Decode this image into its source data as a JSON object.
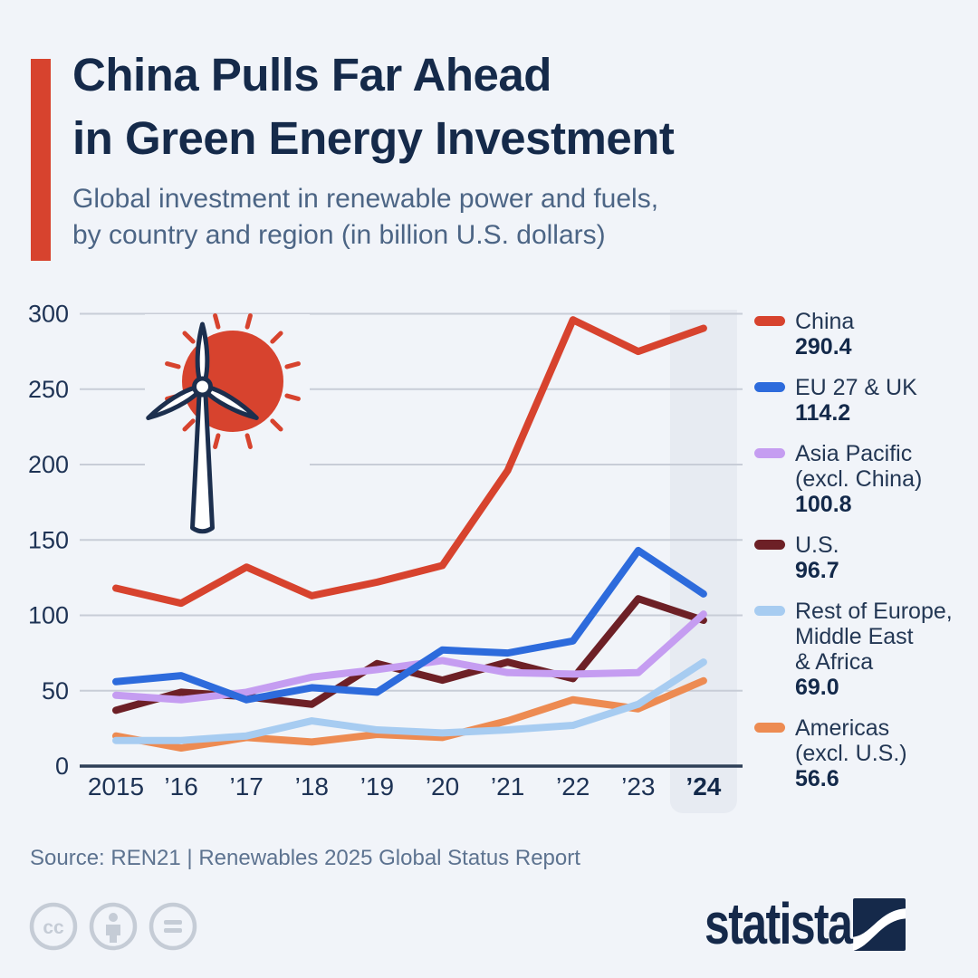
{
  "header": {
    "title_lines": [
      "China Pulls Far Ahead",
      "in Green Energy Investment"
    ],
    "subtitle_lines": [
      "Global investment in renewable power and fuels,",
      "by country and region (in billion U.S. dollars)"
    ],
    "accent_color": "#d7432e"
  },
  "chart_data": {
    "type": "line",
    "title": "Global investment in renewable power and fuels, by country and region (in billion U.S. dollars)",
    "x_labels": [
      "2015",
      "’16",
      "’17",
      "’18",
      "’19",
      "’20",
      "’21",
      "’22",
      "’23",
      "’24"
    ],
    "y_ticks": [
      0,
      50,
      100,
      150,
      200,
      250,
      300
    ],
    "ylim": [
      0,
      300
    ],
    "grid": "horizontal",
    "legend_position": "right",
    "highlighted_x": "’24",
    "unit": "billion U.S. dollars",
    "series": [
      {
        "name": "China",
        "color": "#d7432e",
        "values": [
          118,
          108,
          132,
          113,
          122,
          133,
          196,
          296,
          275,
          290.4
        ],
        "final_label": "290.4"
      },
      {
        "name": "EU 27 & UK",
        "color": "#2d6bdc",
        "values": [
          56,
          60,
          44,
          52,
          49,
          77,
          75,
          83,
          143,
          114.2
        ],
        "final_label": "114.2"
      },
      {
        "name": "Asia Pacific (excl. China)",
        "color": "#c59df1",
        "values": [
          47,
          44,
          49,
          59,
          64,
          70,
          62,
          61,
          62,
          100.8
        ],
        "final_label": "100.8"
      },
      {
        "name": "U.S.",
        "color": "#6d2026",
        "values": [
          37,
          49,
          46,
          41,
          68,
          57,
          69,
          58,
          111,
          96.7
        ],
        "final_label": "96.7"
      },
      {
        "name": "Rest of Europe, Middle East & Africa",
        "color": "#a7ccf1",
        "values": [
          17,
          17,
          20,
          30,
          24,
          22,
          24,
          27,
          41,
          69.0
        ],
        "final_label": "69.0"
      },
      {
        "name": "Americas (excl. U.S.)",
        "color": "#ed8b52",
        "values": [
          20,
          12,
          19,
          16,
          21,
          19,
          30,
          44,
          38,
          56.6
        ],
        "final_label": "56.6"
      }
    ]
  },
  "legend": {
    "items": [
      {
        "label_lines": [
          "China"
        ],
        "value": "290.4",
        "color": "#d7432e"
      },
      {
        "label_lines": [
          "EU 27 & UK"
        ],
        "value": "114.2",
        "color": "#2d6bdc"
      },
      {
        "label_lines": [
          "Asia Pacific",
          "(excl. China)"
        ],
        "value": "100.8",
        "color": "#c59df1"
      },
      {
        "label_lines": [
          "U.S."
        ],
        "value": "96.7",
        "color": "#6d2026"
      },
      {
        "label_lines": [
          "Rest of Europe,",
          "Middle East",
          "& Africa"
        ],
        "value": "69.0",
        "color": "#a7ccf1"
      },
      {
        "label_lines": [
          "Americas",
          "(excl. U.S.)"
        ],
        "value": "56.6",
        "color": "#ed8b52"
      }
    ]
  },
  "footer": {
    "source": "Source: REN21 | Renewables 2025 Global Status Report",
    "license_icons": [
      "cc-icon",
      "attribution-person-icon",
      "equals-icon"
    ],
    "brand": "statista"
  },
  "colors": {
    "background": "#f1f4f9",
    "title": "#152a4a",
    "subtitle": "#4c6585",
    "axis_text": "#1e3355",
    "gridline": "#c8cdd7",
    "baseline": "#2e3f57",
    "highlight_band": "#e7ebf2",
    "source_text": "#5d7390",
    "license_icon": "#c5ccd6",
    "sun": "#d7432e",
    "turbine_outline": "#1c2f4e"
  }
}
